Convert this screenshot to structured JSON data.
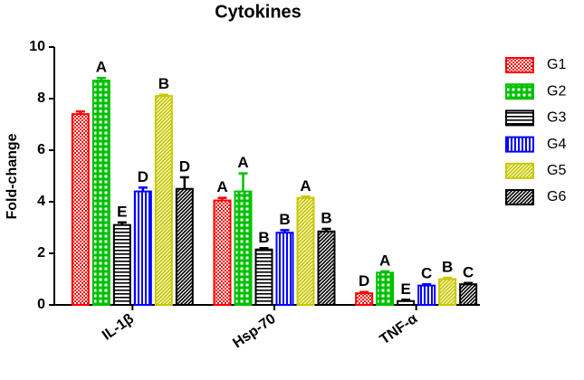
{
  "chart_data": {
    "type": "bar",
    "title": "Cytokines",
    "y_label": "Fold-change",
    "categories": [
      "IL-1β",
      "Hsp-70",
      "TNF-α"
    ],
    "series": [
      {
        "name": "G1",
        "color": "#ff0000",
        "pattern": "checker",
        "values": [
          7.4,
          4.05,
          0.45
        ],
        "errors": [
          0.1,
          0.1,
          0.05
        ],
        "letters": [
          null,
          "A",
          "D"
        ]
      },
      {
        "name": "G2",
        "color": "#00c000",
        "pattern": "dots",
        "values": [
          8.7,
          4.4,
          1.25
        ],
        "errors": [
          0.1,
          0.7,
          0.05
        ],
        "letters": [
          "A",
          "A",
          "A"
        ]
      },
      {
        "name": "G3",
        "color": "#000000",
        "pattern": "hlines",
        "values": [
          3.1,
          2.15,
          0.15
        ],
        "errors": [
          0.1,
          0.05,
          0.05
        ],
        "letters": [
          "E",
          "B",
          "E"
        ]
      },
      {
        "name": "G4",
        "color": "#0000ff",
        "pattern": "vlines",
        "values": [
          4.4,
          2.8,
          0.75
        ],
        "errors": [
          0.15,
          0.1,
          0.05
        ],
        "letters": [
          "D",
          "B",
          "C"
        ]
      },
      {
        "name": "G5",
        "color": "#c8c800",
        "pattern": "diag",
        "values": [
          8.1,
          4.15,
          1.0
        ],
        "errors": [
          0.05,
          0.05,
          0.05
        ],
        "letters": [
          "B",
          "A",
          "B"
        ]
      },
      {
        "name": "G6",
        "color": "#000000",
        "pattern": "diag-dark",
        "values": [
          4.5,
          2.85,
          0.8
        ],
        "errors": [
          0.45,
          0.1,
          0.05
        ],
        "letters": [
          "D",
          "B",
          "C"
        ]
      }
    ],
    "ylim": [
      0,
      10
    ],
    "yticks": [
      0,
      2,
      4,
      6,
      8,
      10
    ],
    "grid": false,
    "legend": "right"
  }
}
